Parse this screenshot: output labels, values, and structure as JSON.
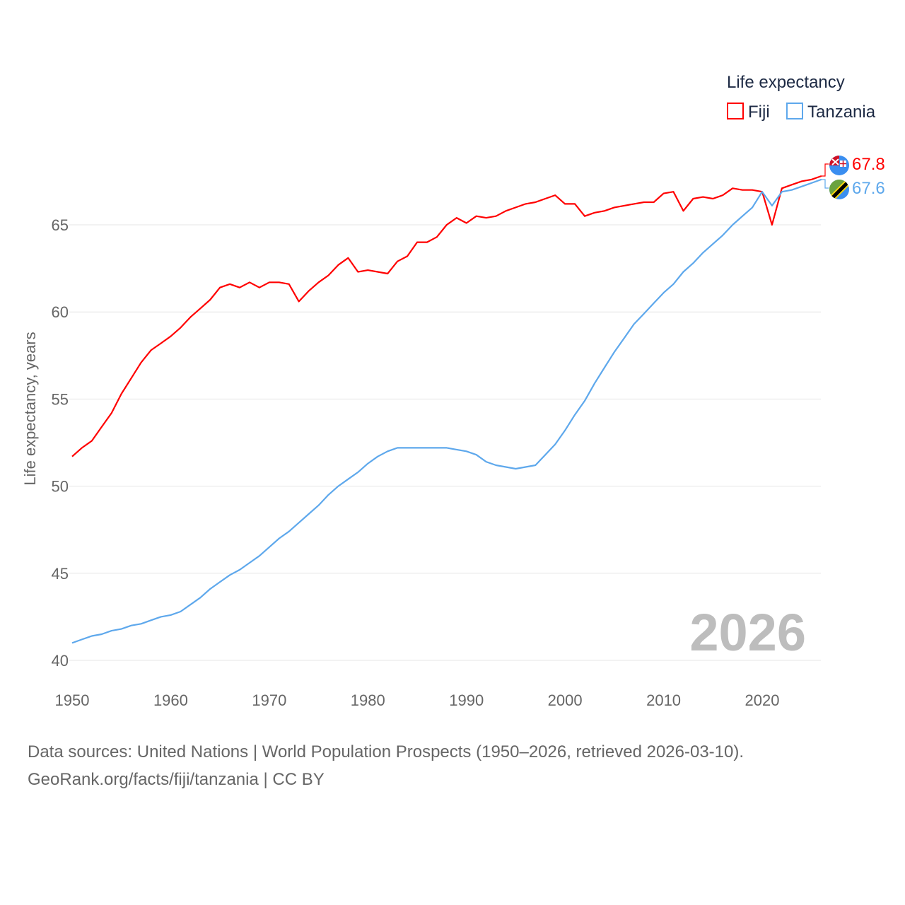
{
  "chart_data": {
    "type": "line",
    "title": "",
    "legend_title": "Life expectancy",
    "legend_placement": "top-right",
    "ylabel": "Life expectancy, years",
    "xlabel": "",
    "xlim": [
      1950,
      2026
    ],
    "ylim": [
      40,
      68
    ],
    "grid": true,
    "x_ticks": [
      "1950",
      "1960",
      "1970",
      "1980",
      "1990",
      "2000",
      "2010",
      "2020"
    ],
    "y_ticks": [
      "40",
      "45",
      "50",
      "55",
      "60",
      "65"
    ],
    "year_label": "2026",
    "x": [
      1950,
      1951,
      1952,
      1953,
      1954,
      1955,
      1956,
      1957,
      1958,
      1959,
      1960,
      1961,
      1962,
      1963,
      1964,
      1965,
      1966,
      1967,
      1968,
      1969,
      1970,
      1971,
      1972,
      1973,
      1974,
      1975,
      1976,
      1977,
      1978,
      1979,
      1980,
      1981,
      1982,
      1983,
      1984,
      1985,
      1986,
      1987,
      1988,
      1989,
      1990,
      1991,
      1992,
      1993,
      1994,
      1995,
      1996,
      1997,
      1998,
      1999,
      2000,
      2001,
      2002,
      2003,
      2004,
      2005,
      2006,
      2007,
      2008,
      2009,
      2010,
      2011,
      2012,
      2013,
      2014,
      2015,
      2016,
      2017,
      2018,
      2019,
      2020,
      2021,
      2022,
      2023,
      2024,
      2025,
      2026
    ],
    "series": [
      {
        "name": "Fiji",
        "color": "#ff0000",
        "end_label": "67.8",
        "values": [
          51.7,
          52.2,
          52.6,
          53.4,
          54.2,
          55.3,
          56.2,
          57.1,
          57.8,
          58.2,
          58.6,
          59.1,
          59.7,
          60.2,
          60.7,
          61.4,
          61.6,
          61.4,
          61.7,
          61.4,
          61.7,
          61.7,
          61.6,
          60.6,
          61.2,
          61.7,
          62.1,
          62.7,
          63.1,
          62.3,
          62.4,
          62.3,
          62.2,
          62.9,
          63.2,
          64.0,
          64.0,
          64.3,
          65.0,
          65.4,
          65.1,
          65.5,
          65.4,
          65.5,
          65.8,
          66.0,
          66.2,
          66.3,
          66.5,
          66.7,
          66.2,
          66.2,
          65.5,
          65.7,
          65.8,
          66.0,
          66.1,
          66.2,
          66.3,
          66.3,
          66.8,
          66.9,
          65.8,
          66.5,
          66.6,
          66.5,
          66.7,
          67.1,
          67.0,
          67.0,
          66.9,
          65.0,
          67.1,
          67.3,
          67.5,
          67.6,
          67.8
        ]
      },
      {
        "name": "Tanzania",
        "color": "#5ea8ec",
        "end_label": "67.6",
        "values": [
          41.0,
          41.2,
          41.4,
          41.5,
          41.7,
          41.8,
          42.0,
          42.1,
          42.3,
          42.5,
          42.6,
          42.8,
          43.2,
          43.6,
          44.1,
          44.5,
          44.9,
          45.2,
          45.6,
          46.0,
          46.5,
          47.0,
          47.4,
          47.9,
          48.4,
          48.9,
          49.5,
          50.0,
          50.4,
          50.8,
          51.3,
          51.7,
          52.0,
          52.2,
          52.2,
          52.2,
          52.2,
          52.2,
          52.2,
          52.1,
          52.0,
          51.8,
          51.4,
          51.2,
          51.1,
          51.0,
          51.1,
          51.2,
          51.8,
          52.4,
          53.2,
          54.1,
          54.9,
          55.9,
          56.8,
          57.7,
          58.5,
          59.3,
          59.9,
          60.5,
          61.1,
          61.6,
          62.3,
          62.8,
          63.4,
          63.9,
          64.4,
          65.0,
          65.5,
          66.0,
          66.9,
          66.1,
          66.9,
          67.0,
          67.2,
          67.4,
          67.6
        ]
      }
    ]
  },
  "footer": {
    "sources": "Data sources: United Nations | World Population Prospects (1950–2026, retrieved 2026-03-10).",
    "link": "GeoRank.org/facts/fiji/tanzania | CC BY"
  }
}
